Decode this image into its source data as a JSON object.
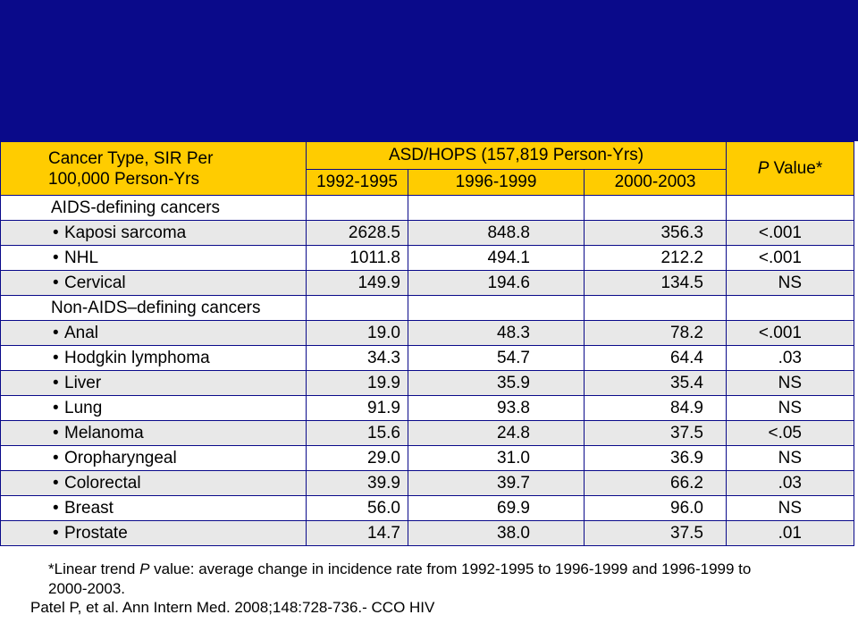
{
  "header": {
    "cancer_type_line1": "Cancer Type, SIR Per",
    "cancer_type_line2": "100,000 Person-Yrs",
    "group_label": "ASD/HOPS (157,819 Person-Yrs)",
    "years": [
      "1992-1995",
      "1996-1999",
      "2000-2003"
    ],
    "p_value_italic": "P",
    "p_value_rest": " Value*"
  },
  "rows": [
    {
      "type": "category",
      "label": "AIDS-defining cancers"
    },
    {
      "type": "item",
      "label": "Kaposi sarcoma",
      "v1": "2628.5",
      "v2": "848.8",
      "v3": "356.3",
      "p": "<.001"
    },
    {
      "type": "item",
      "label": "NHL",
      "v1": "1011.8",
      "v2": "494.1",
      "v3": "212.2",
      "p": "<.001"
    },
    {
      "type": "item",
      "label": "Cervical",
      "v1": "149.9",
      "v2": "194.6",
      "v3": "134.5",
      "p": "NS"
    },
    {
      "type": "category",
      "label": "Non-AIDS–defining cancers"
    },
    {
      "type": "item",
      "label": "Anal",
      "v1": "19.0",
      "v2": "48.3",
      "v3": "78.2",
      "p": "<.001"
    },
    {
      "type": "item",
      "label": "Hodgkin lymphoma",
      "v1": "34.3",
      "v2": "54.7",
      "v3": "64.4",
      "p": ".03"
    },
    {
      "type": "item",
      "label": "Liver",
      "v1": "19.9",
      "v2": "35.9",
      "v3": "35.4",
      "p": "NS"
    },
    {
      "type": "item",
      "label": "Lung",
      "v1": "91.9",
      "v2": "93.8",
      "v3": "84.9",
      "p": "NS"
    },
    {
      "type": "item",
      "label": "Melanoma",
      "v1": "15.6",
      "v2": "24.8",
      "v3": "37.5",
      "p": "<.05"
    },
    {
      "type": "item",
      "label": "Oropharyngeal",
      "v1": "29.0",
      "v2": "31.0",
      "v3": "36.9",
      "p": "NS"
    },
    {
      "type": "item",
      "label": "Colorectal",
      "v1": "39.9",
      "v2": "39.7",
      "v3": "66.2",
      "p": ".03"
    },
    {
      "type": "item",
      "label": "Breast",
      "v1": "56.0",
      "v2": "69.9",
      "v3": "96.0",
      "p": "NS"
    },
    {
      "type": "item",
      "label": "Prostate",
      "v1": "14.7",
      "v2": "38.0",
      "v3": "37.5",
      "p": ".01"
    }
  ],
  "footnote": {
    "prefix": "*Linear trend ",
    "p_italic": "P",
    "text": " value: average change in incidence rate from 1992-1995 to 1996-1999 and 1996-1999 to 2000-2003."
  },
  "citation": "Patel P, et al. Ann Intern Med. 2008;148:728-736.- CCO HIV",
  "colors": {
    "band": "#0a0a8a",
    "header": "#ffcc00",
    "row_white": "#ffffff",
    "row_gray": "#e8e8e8"
  }
}
